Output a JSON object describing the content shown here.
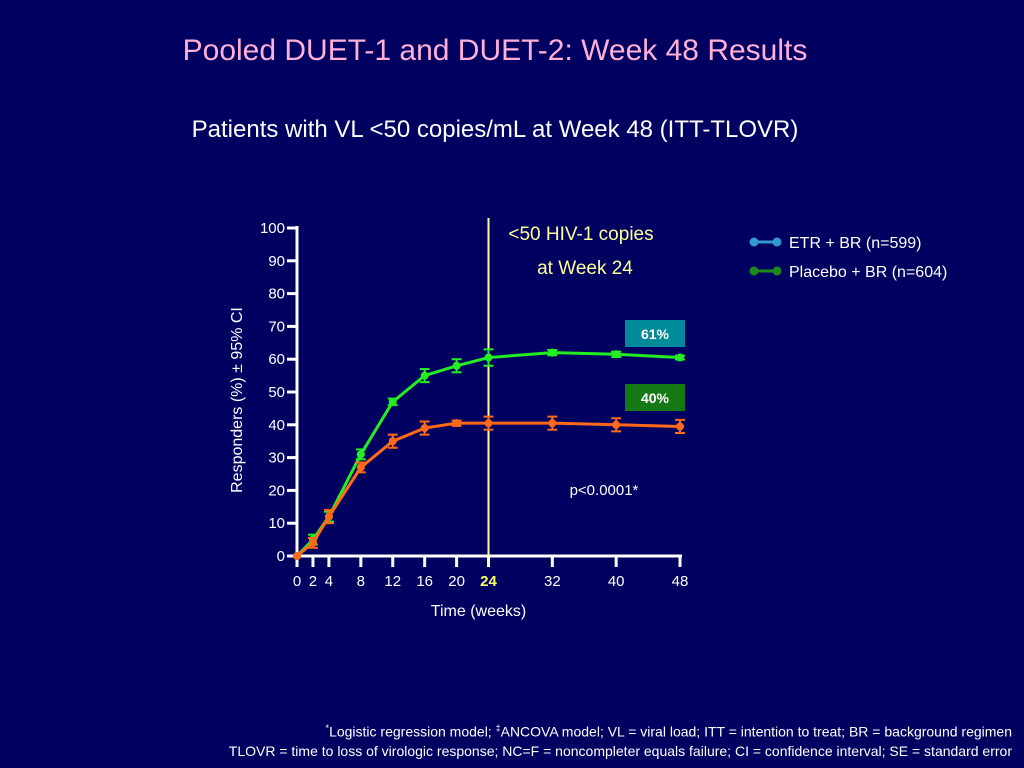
{
  "slide": {
    "title": "Pooled DUET-1 and DUET-2: Week 48 Results",
    "subtitle": "Patients with VL <50 copies/mL at Week 48 (ITT-TLOVR)"
  },
  "footnote": {
    "line1_mark": "*",
    "line1_text": "Logistic regression model; ",
    "line1_mark2": "‡",
    "line1_text2": "ANCOVA model; VL = viral load; ITT = intention to treat; BR = background regimen",
    "line2": "TLOVR = time to loss of virologic response; NC=F = noncompleter equals failure; CI = confidence interval; SE = standard error"
  },
  "chart_data": {
    "type": "line",
    "ylabel": "Responders (%)  ± 95% CI",
    "xlabel": "Time (weeks)",
    "ylim": [
      0,
      100
    ],
    "xlim": [
      0,
      48
    ],
    "y_ticks": [
      0,
      10,
      20,
      30,
      40,
      50,
      60,
      70,
      80,
      90,
      100
    ],
    "x_ticks": [
      0,
      2,
      4,
      8,
      12,
      16,
      20,
      24,
      32,
      40,
      48
    ],
    "highlight_x": 24,
    "reference_line": {
      "x": 24,
      "label_line1": "<50 HIV-1 copies",
      "label_line2": "at Week 24",
      "color": "#FFFF99"
    },
    "series": [
      {
        "name": "ETR + BR (n=599)",
        "color": "#22EE22",
        "legend_color": "#3399CC",
        "x": [
          0,
          2,
          4,
          8,
          12,
          16,
          20,
          24,
          32,
          40,
          48
        ],
        "y": [
          0,
          5,
          12,
          31,
          47,
          55,
          58,
          60.5,
          62,
          61.5,
          60.5
        ],
        "ci": [
          0,
          1.5,
          1.5,
          1.5,
          1,
          2,
          2,
          2.5,
          0.8,
          0.8,
          0.6
        ],
        "end_label": "61%",
        "end_label_bg": "#008B9B"
      },
      {
        "name": "Placebo + BR (n=604)",
        "color": "#FF6A1A",
        "legend_color": "#1A8A1A",
        "x": [
          0,
          2,
          4,
          8,
          12,
          16,
          20,
          24,
          32,
          40,
          48
        ],
        "y": [
          0,
          4,
          12,
          27,
          35,
          39,
          40.5,
          40.5,
          40.5,
          40,
          39.5
        ],
        "ci": [
          0,
          1.5,
          2,
          1.5,
          2,
          2,
          0.8,
          2,
          2,
          2,
          2
        ],
        "end_label": "40%",
        "end_label_bg": "#147814"
      }
    ],
    "annotation": "p<0.0001*",
    "legend_position": "top-right"
  }
}
